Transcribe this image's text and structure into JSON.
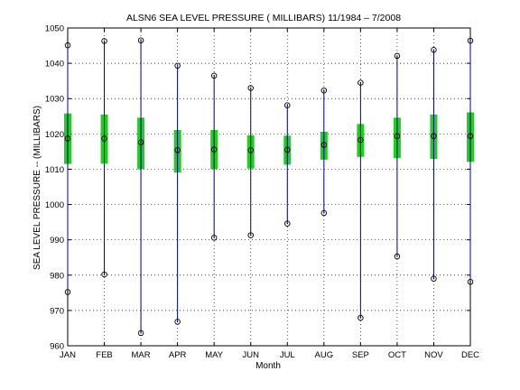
{
  "chart_data": {
    "type": "box",
    "title": "ALSN6  SEA LEVEL PRESSURE ( MILLIBARS) 11/1984 – 7/2008",
    "xlabel": "Month",
    "ylabel": "SEA LEVEL PRESSURE -- (MILLIBARS)",
    "ylim": [
      960,
      1050
    ],
    "yticks": [
      960,
      970,
      980,
      990,
      1000,
      1010,
      1020,
      1030,
      1040,
      1050
    ],
    "grid": true,
    "categories": [
      "JAN",
      "FEB",
      "MAR",
      "APR",
      "MAY",
      "JUN",
      "JUL",
      "AUG",
      "SEP",
      "OCT",
      "NOV",
      "DEC"
    ],
    "series": [
      {
        "max": [
          1045.1,
          1046.3,
          1046.5,
          1039.3,
          1036.5,
          1033.0,
          1028.1,
          1032.3,
          1034.5,
          1042.1,
          1043.8,
          1046.4
        ],
        "q3": [
          1025.8,
          1025.5,
          1024.6,
          1021.1,
          1021.1,
          1019.6,
          1019.5,
          1020.6,
          1022.8,
          1024.6,
          1025.5,
          1026.1
        ],
        "median": [
          1018.7,
          1018.7,
          1017.6,
          1015.4,
          1015.6,
          1015.4,
          1015.5,
          1016.9,
          1018.3,
          1019.4,
          1019.4,
          1019.4
        ],
        "q1": [
          1011.5,
          1011.6,
          1010.0,
          1009.1,
          1010.1,
          1010.2,
          1011.3,
          1012.7,
          1013.5,
          1013.2,
          1012.9,
          1012.1
        ],
        "min": [
          975.2,
          980.2,
          963.6,
          966.8,
          990.6,
          991.3,
          994.6,
          997.6,
          967.9,
          985.3,
          979.0,
          978.1
        ]
      }
    ],
    "colors": {
      "whisker": "#00008b",
      "box": "#22cc22",
      "marker": "#000000",
      "grid": "#000000"
    }
  }
}
